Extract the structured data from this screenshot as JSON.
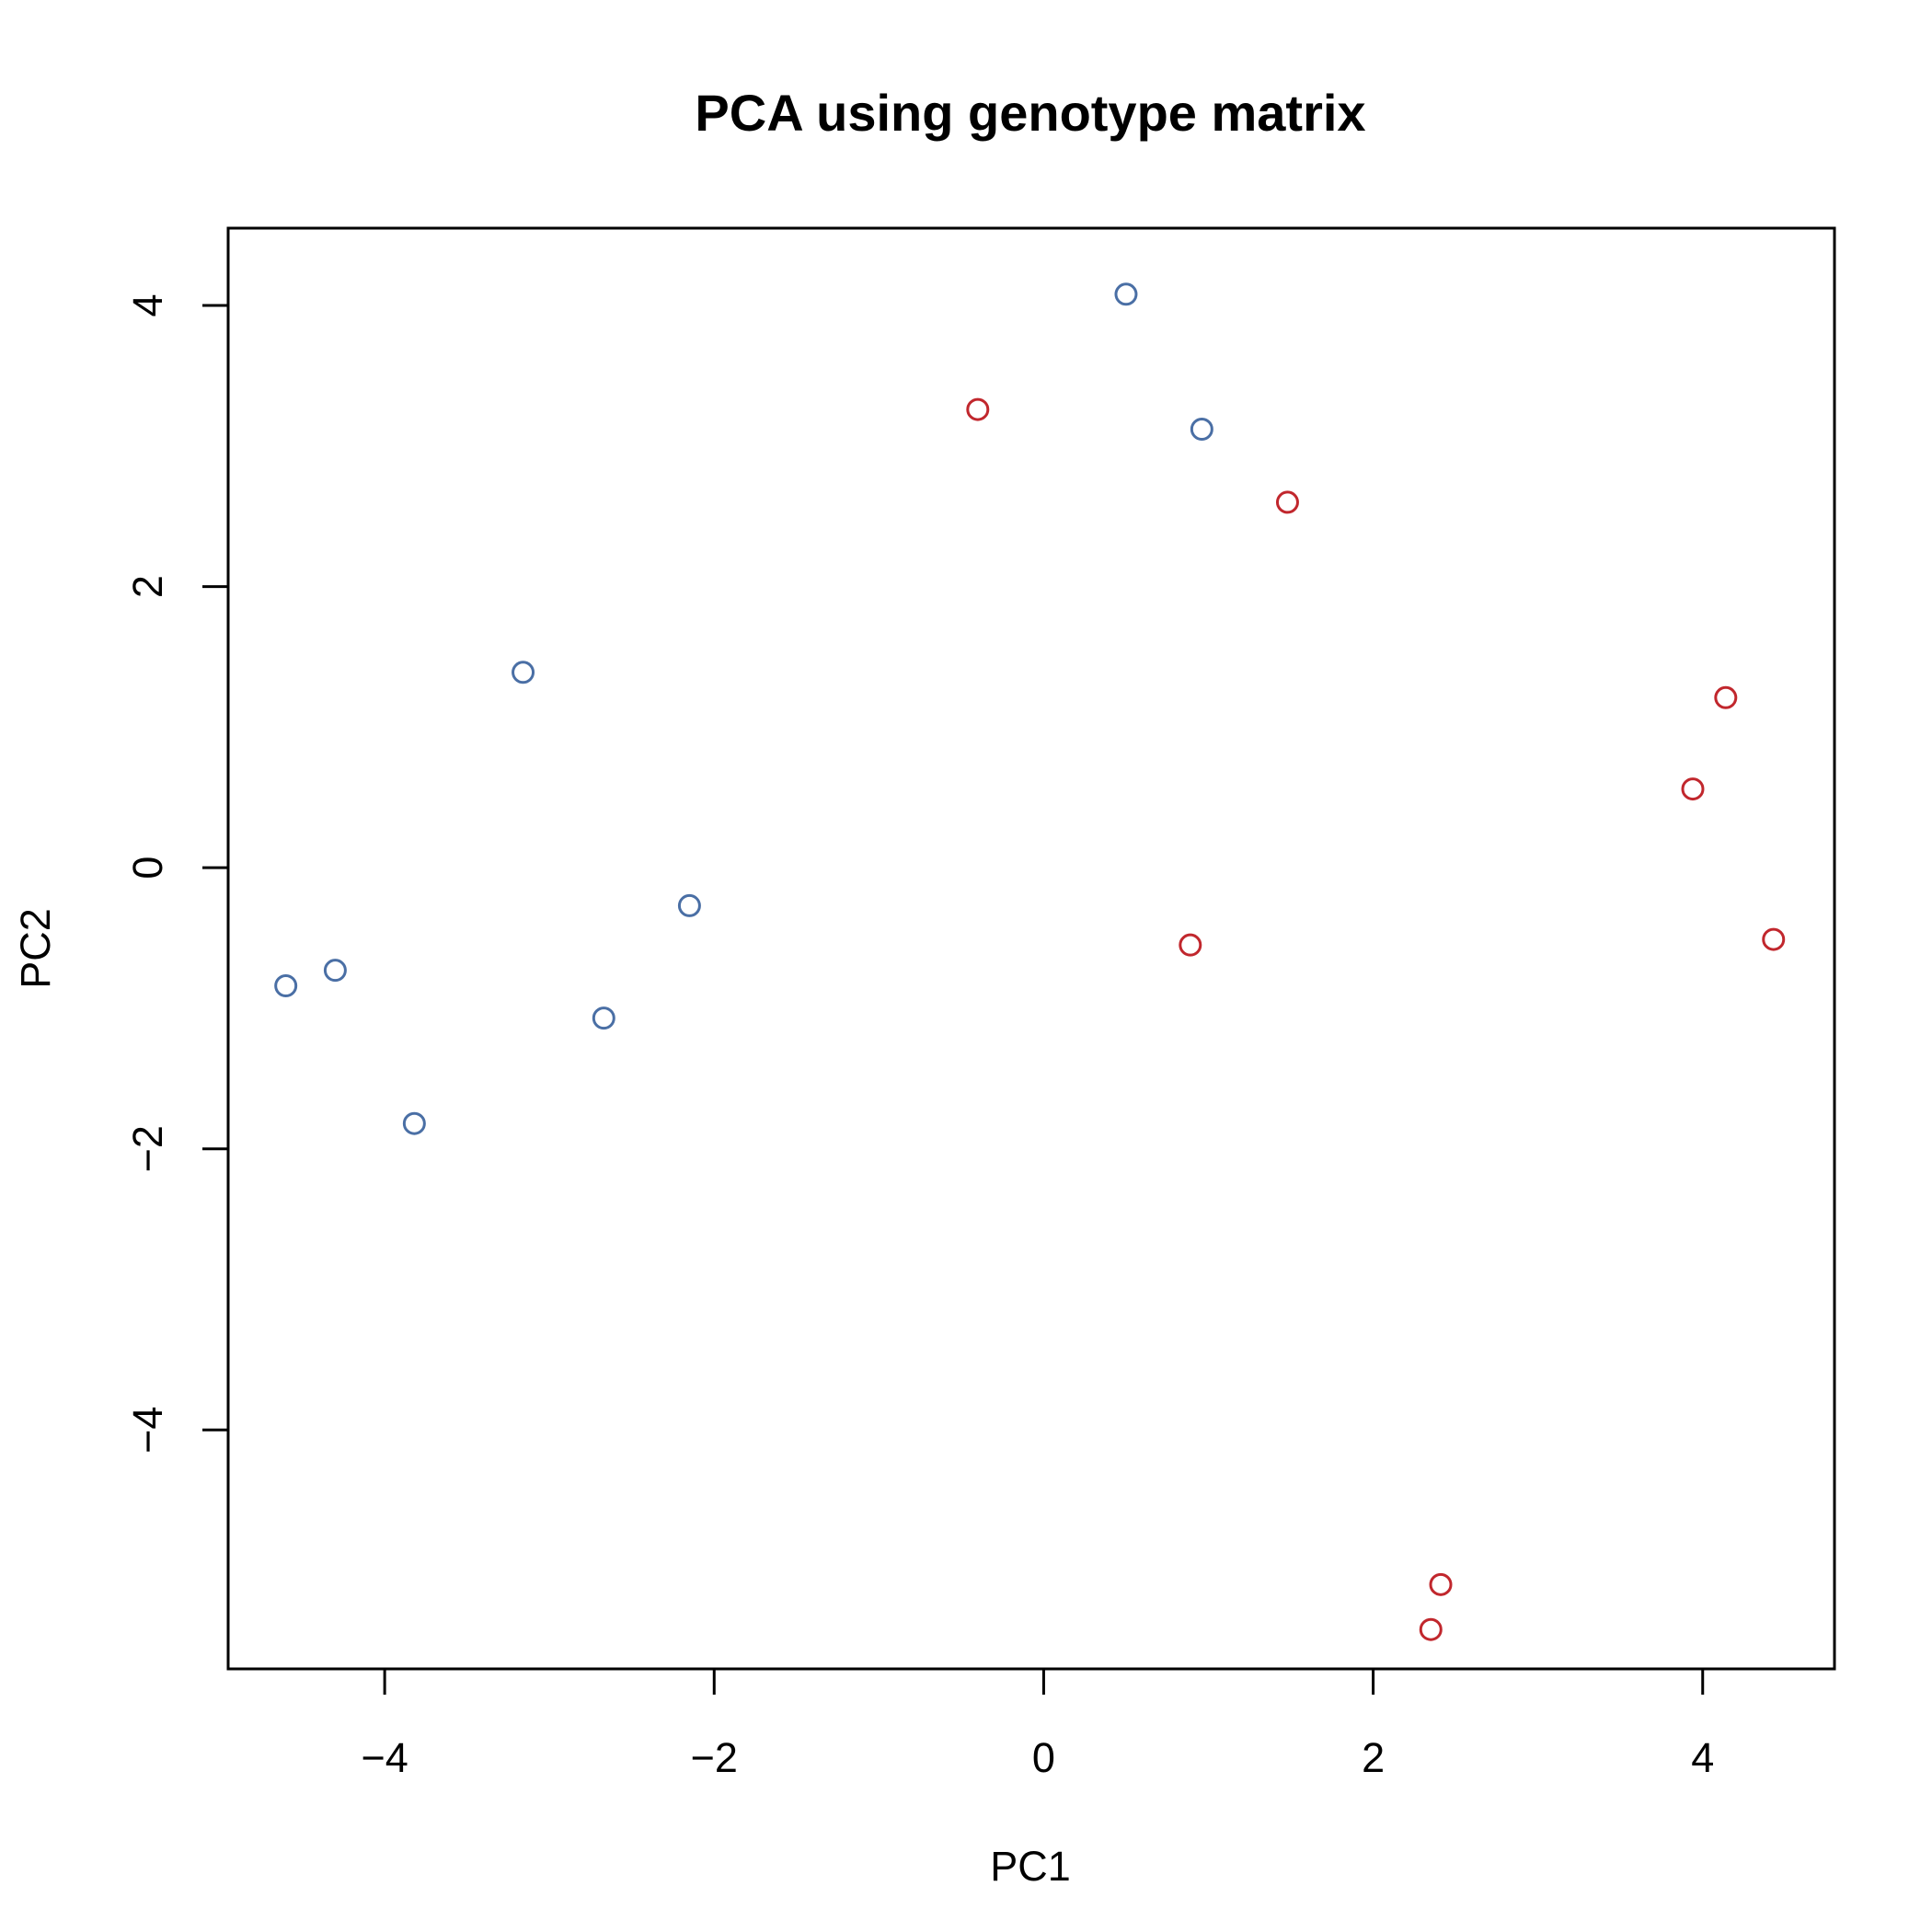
{
  "chart_data": {
    "type": "scatter",
    "title": "PCA using genotype matrix",
    "xlabel": "PC1",
    "ylabel": "PC2",
    "xlim": [
      -4.95,
      4.8
    ],
    "ylim": [
      -5.7,
      4.55
    ],
    "xticks": [
      -4,
      -2,
      0,
      2,
      4
    ],
    "yticks": [
      -4,
      -2,
      0,
      2,
      4
    ],
    "tick_labels": {
      "x": [
        "−4",
        "−2",
        "0",
        "2",
        "4"
      ],
      "y": [
        "−4",
        "−2",
        "0",
        "2",
        "4"
      ]
    },
    "grid": false,
    "marker": "open-circle",
    "series": [
      {
        "color": "#4a6fa5",
        "points": [
          {
            "x": -4.6,
            "y": -0.84
          },
          {
            "x": -4.3,
            "y": -0.73
          },
          {
            "x": -3.82,
            "y": -1.82
          },
          {
            "x": -3.16,
            "y": 1.39
          },
          {
            "x": -2.67,
            "y": -1.07
          },
          {
            "x": -2.15,
            "y": -0.27
          },
          {
            "x": 0.5,
            "y": 4.08
          },
          {
            "x": 0.96,
            "y": 3.12
          }
        ]
      },
      {
        "color": "#c1272d",
        "points": [
          {
            "x": -0.4,
            "y": 3.26
          },
          {
            "x": 1.48,
            "y": 2.6
          },
          {
            "x": 0.89,
            "y": -0.55
          },
          {
            "x": 3.94,
            "y": 0.56
          },
          {
            "x": 4.14,
            "y": 1.21
          },
          {
            "x": 4.43,
            "y": -0.51
          },
          {
            "x": 2.41,
            "y": -5.1
          },
          {
            "x": 2.35,
            "y": -5.42
          }
        ]
      }
    ]
  }
}
